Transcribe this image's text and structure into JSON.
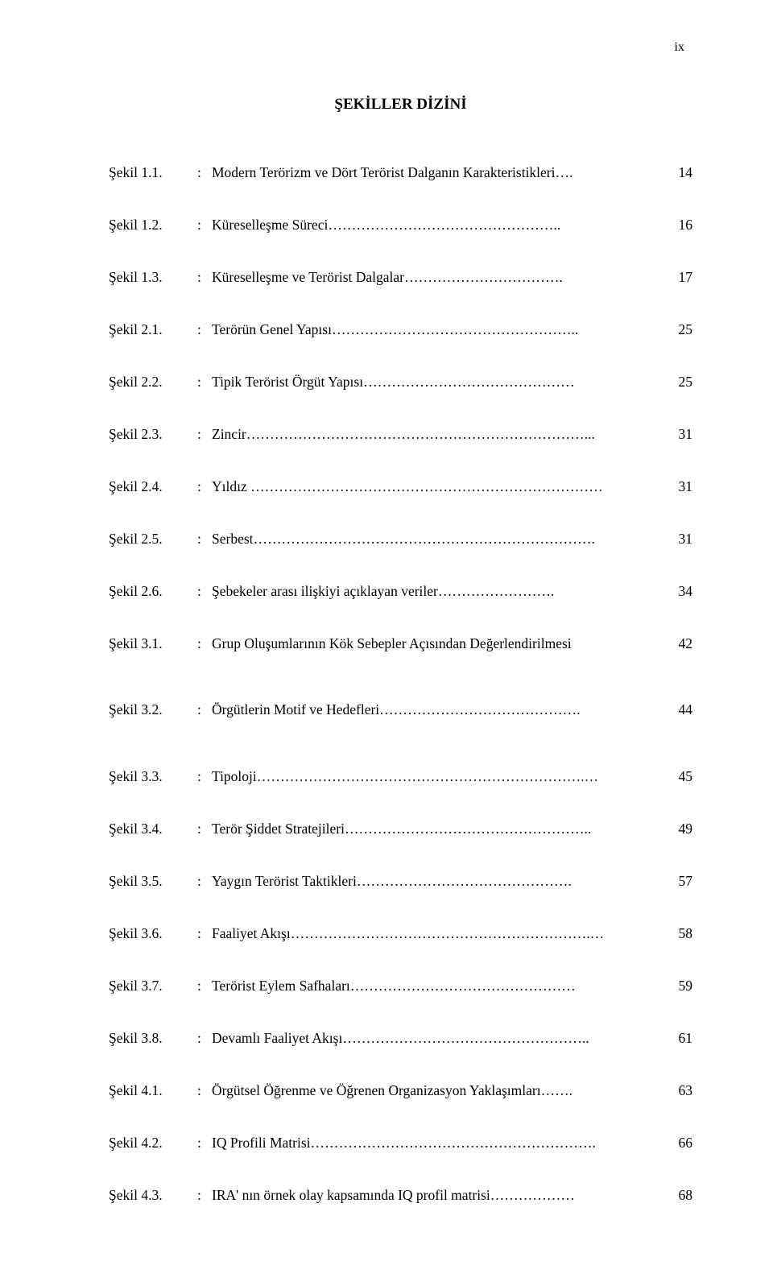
{
  "page_number_label": "ix",
  "title": "ŞEKİLLER DİZİNİ",
  "entries": [
    {
      "label": "Şekil 1.1.",
      "text": "Modern Terörizm ve Dört Terörist Dalganın Karakteristikleri",
      "leader": "….",
      "page": "14",
      "gap": "normal"
    },
    {
      "label": "Şekil 1.2.",
      "text": "Küreselleşme Süreci",
      "leader": "…………………………………………..",
      "page": "16",
      "gap": "normal"
    },
    {
      "label": "Şekil 1.3.",
      "text": "Küreselleşme ve Terörist Dalgalar",
      "leader": "…………………………….",
      "page": "17",
      "gap": "normal"
    },
    {
      "label": "Şekil 2.1.",
      "text": "Terörün Genel Yapısı",
      "leader": "……………………………………………..",
      "page": "25",
      "gap": "normal"
    },
    {
      "label": "Şekil 2.2.",
      "text": "Tipik Terörist Örgüt Yapısı",
      "leader": "………………………………………",
      "page": "25",
      "gap": "normal"
    },
    {
      "label": "Şekil 2.3.",
      "text": "Zincir",
      "leader": "………………………………………………………………...",
      "page": "31",
      "gap": "normal"
    },
    {
      "label": "Şekil 2.4.",
      "text": "Yıldız ",
      "leader": "…………………………………………………………………",
      "page": "31",
      "gap": "normal"
    },
    {
      "label": "Şekil 2.5.",
      "text": "Serbest",
      "leader": "……………………………………………………………….",
      "page": "31",
      "gap": "normal"
    },
    {
      "label": "Şekil 2.6.",
      "text": "Şebekeler arası ilişkiyi açıklayan veriler",
      "leader": "…………………….",
      "page": "34",
      "gap": "normal"
    },
    {
      "label": "Şekil 3.1.",
      "text": "Grup Oluşumlarının Kök Sebepler Açısından Değerlendirilmesi",
      "leader": "",
      "page": "42",
      "gap": "large"
    },
    {
      "label": "Şekil 3.2.",
      "text": "Örgütlerin Motif ve Hedefleri",
      "leader": "…………………………………….",
      "page": "44",
      "gap": "large"
    },
    {
      "label": "Şekil 3.3.",
      "text": "Tipoloji",
      "leader": "…………………………………………………………….…",
      "page": "45",
      "gap": "normal"
    },
    {
      "label": "Şekil 3.4.",
      "text": "Terör Şiddet Stratejileri",
      "leader": "……………………………………………..",
      "page": "49",
      "gap": "normal"
    },
    {
      "label": "Şekil 3.5.",
      "text": "Yaygın Terörist Taktikleri",
      "leader": "……………………………………….",
      "page": "57",
      "gap": "normal"
    },
    {
      "label": "Şekil 3.6.",
      "text": "Faaliyet Akışı",
      "leader": "……………………………………………………….…",
      "page": "58",
      "gap": "normal"
    },
    {
      "label": "Şekil 3.7.",
      "text": "Terörist Eylem Safhaları",
      "leader": "…………………………………………",
      "page": "59",
      "gap": "normal"
    },
    {
      "label": "Şekil 3.8.",
      "text": "Devamlı Faaliyet Akışı",
      "leader": "……………………………………………..",
      "page": "61",
      "gap": "normal"
    },
    {
      "label": "Şekil 4.1.",
      "text": "Örgütsel Öğrenme ve Öğrenen Organizasyon Yaklaşımları",
      "leader": "…….",
      "page": "63",
      "gap": "normal"
    },
    {
      "label": "Şekil 4.2.",
      "text": "IQ Profili Matrisi",
      "leader": "…………………………………………………….",
      "page": "66",
      "gap": "normal"
    },
    {
      "label": "Şekil 4.3.",
      "text": "IRA' nın örnek olay kapsamında IQ profil matrisi",
      "leader": "………………",
      "page": "68",
      "gap": "normal"
    }
  ]
}
